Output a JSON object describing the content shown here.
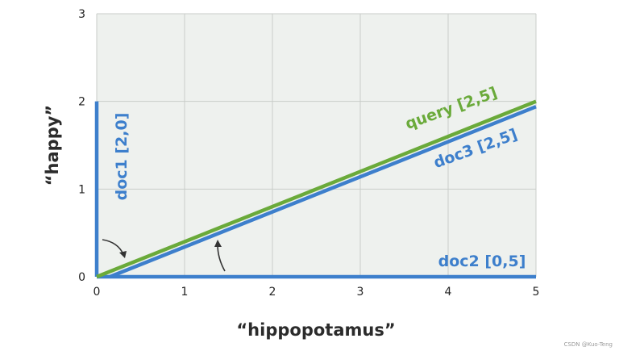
{
  "chart_data": {
    "type": "line",
    "xlabel": "“hippopotamus”",
    "ylabel": "“happy”",
    "xlim": [
      0,
      5
    ],
    "ylim": [
      0,
      3
    ],
    "x_ticks": [
      "0",
      "1",
      "2",
      "3",
      "4",
      "5"
    ],
    "y_ticks": [
      "0",
      "1",
      "2",
      "3"
    ],
    "grid": true,
    "series": [
      {
        "name": "query [2,5]",
        "color": "#6aaa3a",
        "points": [
          [
            0,
            0
          ],
          [
            5,
            2
          ]
        ]
      },
      {
        "name": "doc3 [2,5]",
        "color": "#3d7fcc",
        "points": [
          [
            0.15,
            0
          ],
          [
            5,
            1.94
          ]
        ]
      },
      {
        "name": "doc1 [2,0]",
        "color": "#3d7fcc",
        "points": [
          [
            0,
            0
          ],
          [
            0,
            2
          ]
        ]
      },
      {
        "name": "doc2 [0,5]",
        "color": "#3d7fcc",
        "points": [
          [
            0,
            0
          ],
          [
            5,
            0
          ]
        ]
      }
    ]
  },
  "watermark": "CSDN @Kuo-Teng"
}
